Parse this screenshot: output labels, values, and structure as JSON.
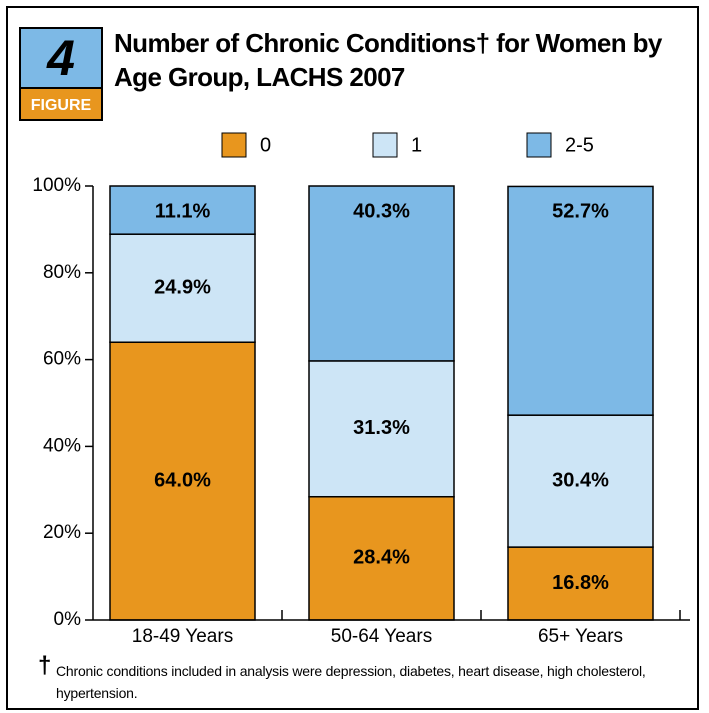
{
  "chart_data": {
    "type": "stacked_bar",
    "figure_number": "4",
    "figure_label": "FIGURE",
    "title": "Number of Chronic Conditions† for Women by Age Group, LACHS 2007",
    "categories": [
      "18-49 Years",
      "50-64 Years",
      "65+ Years"
    ],
    "series": [
      {
        "name": "0",
        "color": "#e8961e",
        "values": [
          64.0,
          28.4,
          16.8
        ],
        "value_labels": [
          "64.0%",
          "28.4%",
          "16.8%"
        ]
      },
      {
        "name": "1",
        "color": "#cde5f6",
        "values": [
          24.9,
          31.3,
          30.4
        ],
        "value_labels": [
          "24.9%",
          "31.3%",
          "30.4%"
        ]
      },
      {
        "name": "2-5",
        "color": "#7db9e6",
        "values": [
          11.1,
          40.3,
          52.7
        ],
        "value_labels": [
          "11.1%",
          "40.3%",
          "52.7%"
        ]
      }
    ],
    "ylim": [
      0,
      100
    ],
    "yticks": [
      {
        "value": 0,
        "label": "0%"
      },
      {
        "value": 20,
        "label": "20%"
      },
      {
        "value": 40,
        "label": "40%"
      },
      {
        "value": 60,
        "label": "60%"
      },
      {
        "value": 80,
        "label": "80%"
      },
      {
        "value": 100,
        "label": "100%"
      }
    ],
    "legend": "top",
    "footnote_mark": "†",
    "footnote": "Chronic conditions included in analysis were depression, diabetes, heart disease, high cholesterol, hypertension."
  }
}
